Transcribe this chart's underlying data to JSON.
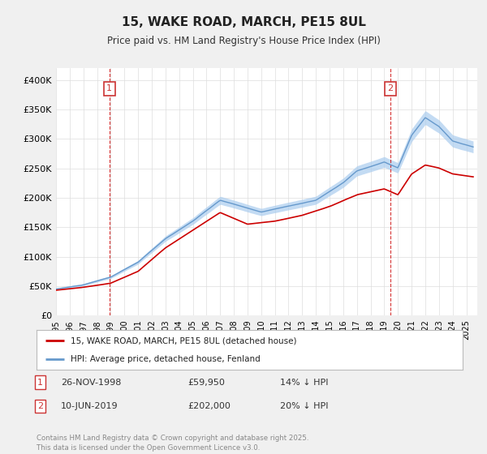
{
  "title": "15, WAKE ROAD, MARCH, PE15 8UL",
  "subtitle": "Price paid vs. HM Land Registry's House Price Index (HPI)",
  "ylabel_ticks": [
    "£0",
    "£50K",
    "£100K",
    "£150K",
    "£200K",
    "£250K",
    "£300K",
    "£350K",
    "£400K"
  ],
  "ytick_values": [
    0,
    50000,
    100000,
    150000,
    200000,
    250000,
    300000,
    350000,
    400000
  ],
  "ylim": [
    0,
    420000
  ],
  "xlim_start": 1995.0,
  "xlim_end": 2025.8,
  "xtick_years": [
    1995,
    1996,
    1997,
    1998,
    1999,
    2000,
    2001,
    2002,
    2003,
    2004,
    2005,
    2006,
    2007,
    2008,
    2009,
    2010,
    2011,
    2012,
    2013,
    2014,
    2015,
    2016,
    2017,
    2018,
    2019,
    2020,
    2021,
    2022,
    2023,
    2024,
    2025
  ],
  "marker1_x": 1998.9,
  "marker1_y": 59950,
  "marker1_label": "1",
  "marker2_x": 2019.45,
  "marker2_y": 202000,
  "marker2_label": "2",
  "vline1_x": 1998.9,
  "vline2_x": 2019.45,
  "red_line_color": "#cc0000",
  "blue_line_color": "#6699cc",
  "blue_fill_color": "#aaccee",
  "legend_label1": "15, WAKE ROAD, MARCH, PE15 8UL (detached house)",
  "legend_label2": "HPI: Average price, detached house, Fenland",
  "table_row1": [
    "1",
    "26-NOV-1998",
    "£59,950",
    "14% ↓ HPI"
  ],
  "table_row2": [
    "2",
    "10-JUN-2019",
    "£202,000",
    "20% ↓ HPI"
  ],
  "footer": "Contains HM Land Registry data © Crown copyright and database right 2025.\nThis data is licensed under the Open Government Licence v3.0.",
  "background_color": "#f0f0f0",
  "plot_bg_color": "#ffffff",
  "grid_color": "#dddddd",
  "key_years_hpi": [
    1995,
    1997,
    1999,
    2001,
    2003,
    2005,
    2007,
    2008.5,
    2010,
    2012,
    2014,
    2016,
    2017,
    2019,
    2020,
    2021,
    2022,
    2023,
    2024,
    2025.5
  ],
  "key_vals_hpi": [
    45000,
    52000,
    65000,
    90000,
    130000,
    160000,
    195000,
    185000,
    175000,
    185000,
    195000,
    225000,
    245000,
    260000,
    250000,
    305000,
    335000,
    320000,
    295000,
    285000
  ],
  "key_years_red": [
    1995,
    1997,
    1999,
    2001,
    2003,
    2005,
    2007,
    2009,
    2011,
    2013,
    2015,
    2017,
    2019,
    2020,
    2021,
    2022,
    2023,
    2024,
    2025.5
  ],
  "key_vals_red": [
    43000,
    48000,
    55000,
    75000,
    115000,
    145000,
    175000,
    155000,
    160000,
    170000,
    185000,
    205000,
    215000,
    205000,
    240000,
    255000,
    250000,
    240000,
    235000
  ]
}
